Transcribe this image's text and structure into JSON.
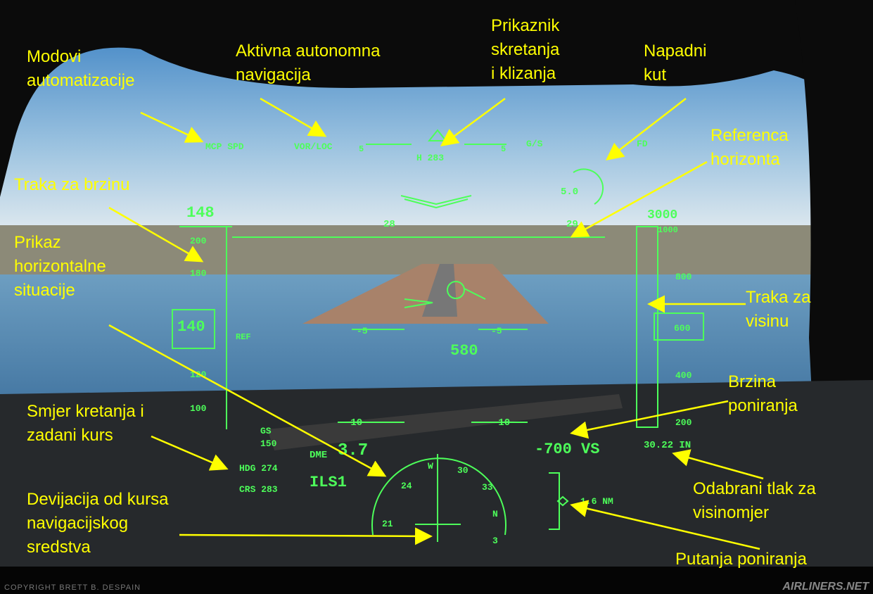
{
  "annotations": [
    {
      "lines": [
        "Modovi",
        "automatizacije"
      ]
    },
    {
      "lines": [
        "Aktivna autonomna",
        "navigacija"
      ]
    },
    {
      "lines": [
        "Prikaznik",
        "skretanja",
        "i klizanja"
      ]
    },
    {
      "lines": [
        "Napadni",
        "kut"
      ]
    },
    {
      "lines": [
        "Referenca",
        "horizonta"
      ]
    },
    {
      "lines": [
        "Traka za brzinu"
      ]
    },
    {
      "lines": [
        "Prikaz",
        "horizontalne",
        "situacije"
      ]
    },
    {
      "lines": [
        "Traka za",
        "visinu"
      ]
    },
    {
      "lines": [
        "Brzina",
        "poniranja"
      ]
    },
    {
      "lines": [
        "Smjer kretanja i",
        "zadani kurs"
      ]
    },
    {
      "lines": [
        "Odabrani tlak za",
        "visinomjer"
      ]
    },
    {
      "lines": [
        "Devijacija od kursa",
        "navigacijskog",
        "sredstva"
      ]
    },
    {
      "lines": [
        "Putanja poniranja"
      ]
    }
  ],
  "hud": [
    "MCP SPD",
    "VOR/LOC",
    "G/S",
    "FD",
    "5",
    "5",
    "H 283",
    "5.0",
    "148",
    "28",
    "29",
    "3000",
    "1000",
    "200",
    "180",
    "140",
    "REF",
    "120",
    "100",
    "800",
    "600",
    "400",
    "200",
    "-5",
    "-5",
    "580",
    "-10",
    "-10",
    "GS",
    "150",
    "DME",
    "3.7",
    "-700 VS",
    "30.22 IN",
    "HDG 274",
    "CRS 283",
    "ILS1",
    "1.6 NM",
    "21",
    "24",
    "W",
    "30",
    "33",
    "N",
    "3"
  ],
  "footer": {
    "copyright": "COPYRIGHT BRETT B. DESPAIN",
    "watermark": "AIRLINERS.NET"
  }
}
